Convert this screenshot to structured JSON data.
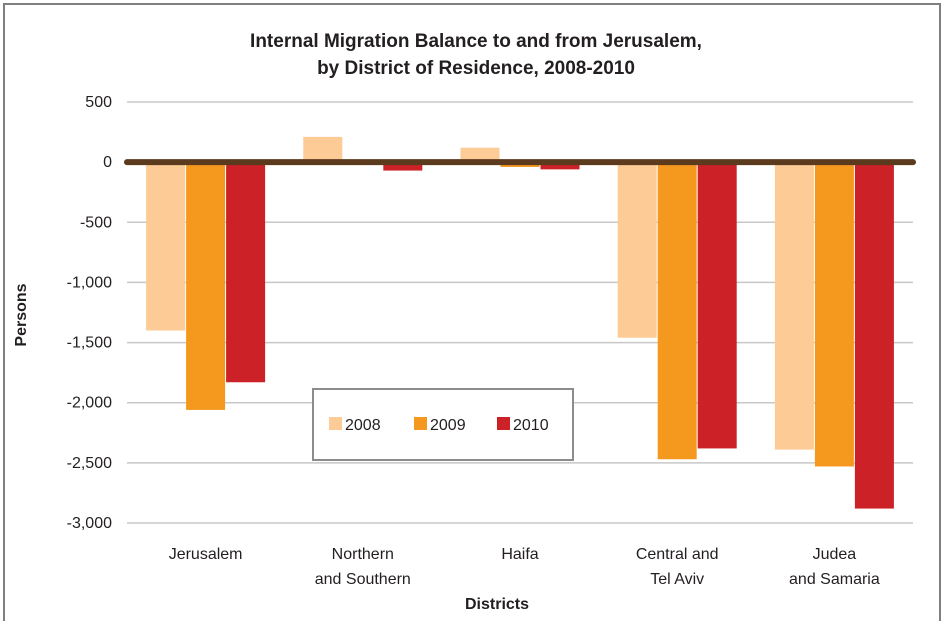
{
  "chart_data": {
    "type": "bar",
    "title_lines": [
      "Internal Migration Balance to and from Jerusalem,",
      "by District of Residence, 2008-2010"
    ],
    "xlabel": "Districts",
    "ylabel": "Persons",
    "categories": [
      [
        "Jerusalem"
      ],
      [
        "Northern",
        "and Southern"
      ],
      [
        "Haifa"
      ],
      [
        "Central and",
        "Tel Aviv"
      ],
      [
        "Judea",
        "and Samaria"
      ]
    ],
    "series": [
      {
        "name": "2008",
        "color": "#FDCB95",
        "values": [
          -1400,
          210,
          120,
          -1460,
          -2390
        ]
      },
      {
        "name": "2009",
        "color": "#F5991E",
        "values": [
          -2060,
          0,
          -40,
          -2470,
          -2530
        ]
      },
      {
        "name": "2010",
        "color": "#CB2127",
        "values": [
          -1830,
          -70,
          -60,
          -2380,
          -2880
        ]
      }
    ],
    "ylim": [
      -3000,
      500
    ],
    "yticks": [
      500,
      0,
      -500,
      -1000,
      -1500,
      -2000,
      -2500,
      -3000
    ],
    "ytick_labels": [
      "500",
      "0",
      "-500",
      "-1,000",
      "-1,500",
      "-2,000",
      "-2,500",
      "-3,000"
    ],
    "grid": true,
    "legend_position": "center-bottom",
    "zero_line_color": "#5B3A1E",
    "gridline_color": "#C8C8C8",
    "frame_color": "#7F7F7F"
  }
}
